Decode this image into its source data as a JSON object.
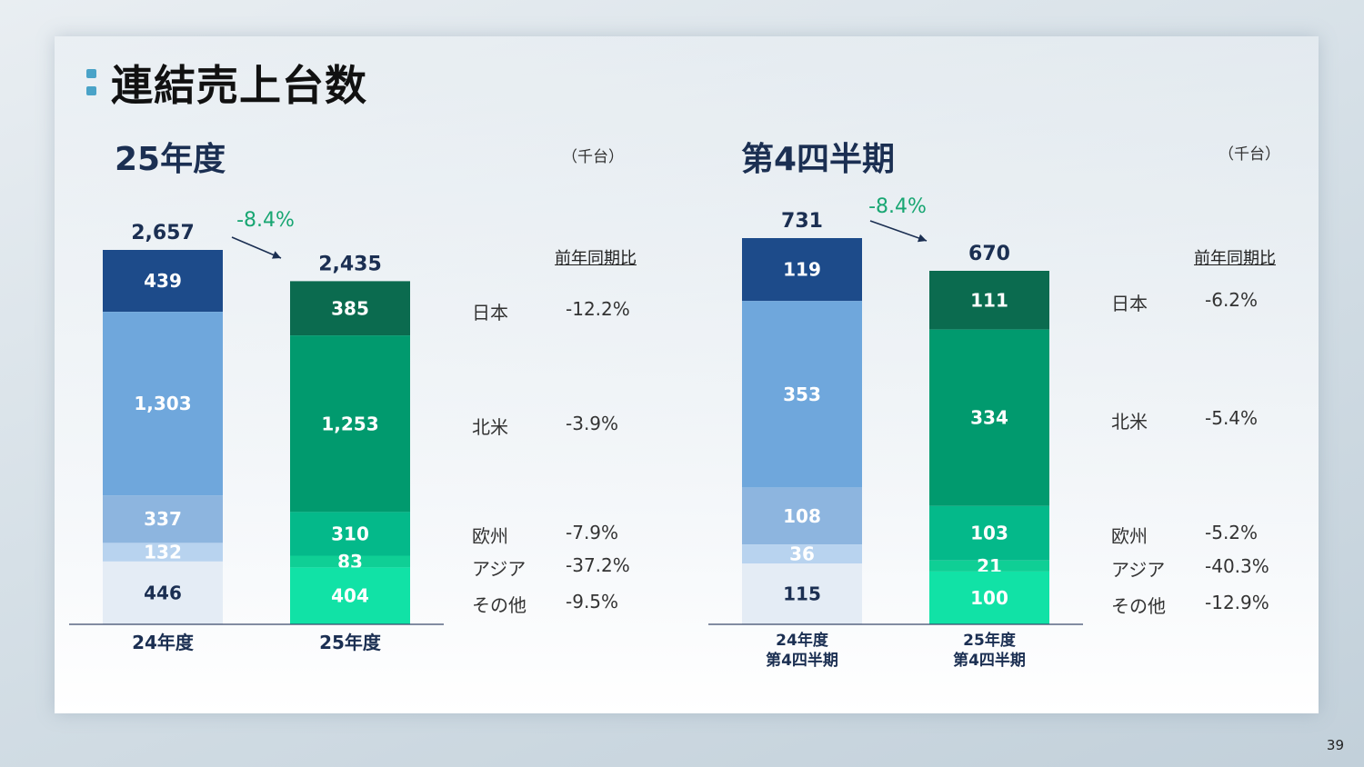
{
  "slide": {
    "title": "連結売上台数",
    "page_number": "39"
  },
  "colors": {
    "prev": [
      "#1d4b8a",
      "#6fa7dc",
      "#8db5df",
      "#b8d3ef",
      "#e4ecf5"
    ],
    "curr": [
      "#0b6b4f",
      "#019a6e",
      "#04b98a",
      "#0fcf95",
      "#11e2a6"
    ],
    "arrow": "#1b2f52",
    "change": "#18a672"
  },
  "chart_data": [
    {
      "type": "bar",
      "title": "25年度",
      "unit": "（千台）",
      "categories": [
        "24年度",
        "25年度"
      ],
      "segments": [
        "日本",
        "北米",
        "欧州",
        "アジア",
        "その他"
      ],
      "series": [
        {
          "name": "日本",
          "values": [
            439,
            385
          ]
        },
        {
          "name": "北米",
          "values": [
            1303,
            1253
          ]
        },
        {
          "name": "欧州",
          "values": [
            337,
            310
          ]
        },
        {
          "name": "アジア",
          "values": [
            132,
            83
          ]
        },
        {
          "name": "その他",
          "values": [
            446,
            404
          ]
        }
      ],
      "value_labels": [
        [
          "439",
          "1,303",
          "337",
          "132",
          "446"
        ],
        [
          "385",
          "1,253",
          "310",
          "83",
          "404"
        ]
      ],
      "totals": [
        2657,
        2435
      ],
      "total_labels": [
        "2,657",
        "2,435"
      ],
      "change_label": "-8.4%",
      "yoy_header": "前年同期比",
      "yoy": [
        {
          "region": "日本",
          "value": "-12.2%"
        },
        {
          "region": "北米",
          "value": "-3.9%"
        },
        {
          "region": "欧州",
          "value": "-7.9%"
        },
        {
          "region": "アジア",
          "value": "-37.2%"
        },
        {
          "region": "その他",
          "value": "-9.5%"
        }
      ]
    },
    {
      "type": "bar",
      "title": "第4四半期",
      "unit": "（千台）",
      "categories": [
        "24年度\n第4四半期",
        "25年度\n第4四半期"
      ],
      "segments": [
        "日本",
        "北米",
        "欧州",
        "アジア",
        "その他"
      ],
      "series": [
        {
          "name": "日本",
          "values": [
            119,
            111
          ]
        },
        {
          "name": "北米",
          "values": [
            353,
            334
          ]
        },
        {
          "name": "欧州",
          "values": [
            108,
            103
          ]
        },
        {
          "name": "アジア",
          "values": [
            36,
            21
          ]
        },
        {
          "name": "その他",
          "values": [
            115,
            100
          ]
        }
      ],
      "value_labels": [
        [
          "119",
          "353",
          "108",
          "36",
          "115"
        ],
        [
          "111",
          "334",
          "103",
          "21",
          "100"
        ]
      ],
      "totals": [
        731,
        670
      ],
      "total_labels": [
        "731",
        "670"
      ],
      "change_label": "-8.4%",
      "yoy_header": "前年同期比",
      "yoy": [
        {
          "region": "日本",
          "value": "-6.2%"
        },
        {
          "region": "北米",
          "value": "-5.4%"
        },
        {
          "region": "欧州",
          "value": "-5.2%"
        },
        {
          "region": "アジア",
          "value": "-40.3%"
        },
        {
          "region": "その他",
          "value": "-12.9%"
        }
      ]
    }
  ]
}
